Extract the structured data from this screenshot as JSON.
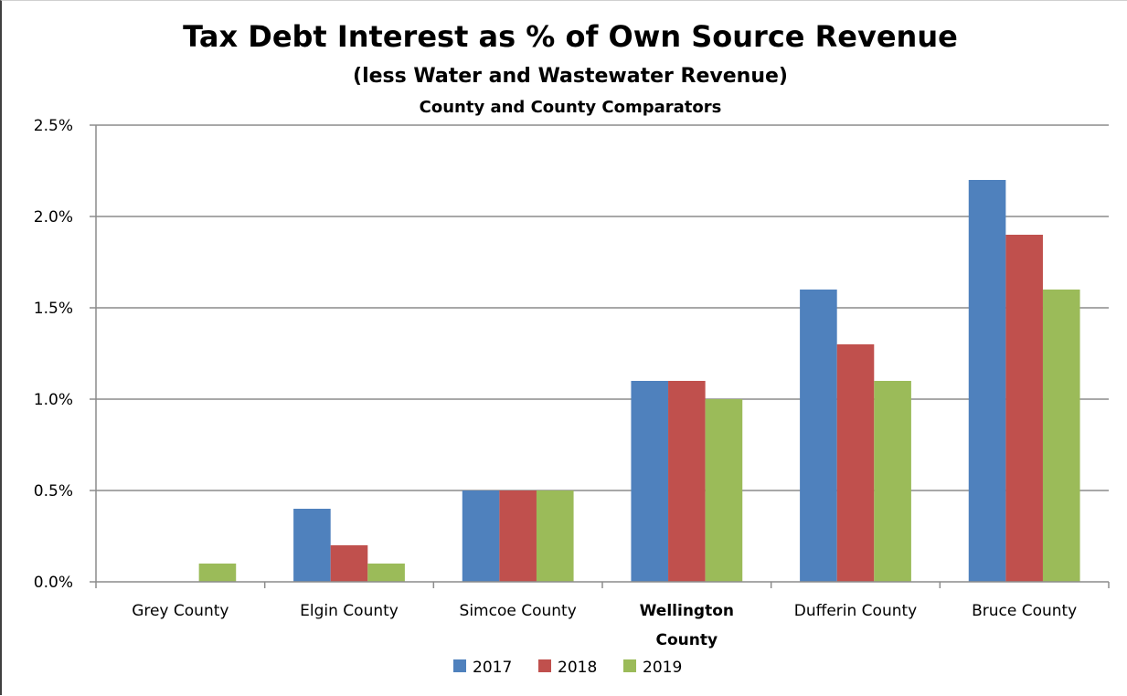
{
  "chart_data": {
    "type": "bar",
    "title": "Tax Debt Interest as % of Own Source Revenue",
    "subtitle": "(less Water and Wastewater Revenue)",
    "subtitle2": "County and County Comparators",
    "xlabel": "",
    "ylabel": "",
    "ylim": [
      0,
      2.5
    ],
    "yticks": [
      "0.0%",
      "0.5%",
      "1.0%",
      "1.5%",
      "2.0%",
      "2.5%"
    ],
    "ytick_values": [
      0,
      0.5,
      1.0,
      1.5,
      2.0,
      2.5
    ],
    "categories": [
      {
        "label": [
          "Grey County"
        ],
        "bold": false
      },
      {
        "label": [
          "Elgin County"
        ],
        "bold": false
      },
      {
        "label": [
          "Simcoe County"
        ],
        "bold": false
      },
      {
        "label": [
          "Wellington",
          "County"
        ],
        "bold": true
      },
      {
        "label": [
          "Dufferin County"
        ],
        "bold": false
      },
      {
        "label": [
          "Bruce County"
        ],
        "bold": false
      }
    ],
    "series": [
      {
        "name": "2017",
        "color": "#4f81bd",
        "values": [
          0,
          0.4,
          0.5,
          1.1,
          1.6,
          2.2
        ]
      },
      {
        "name": "2018",
        "color": "#c0504d",
        "values": [
          0,
          0.2,
          0.5,
          1.1,
          1.3,
          1.9
        ]
      },
      {
        "name": "2019",
        "color": "#9bbb59",
        "values": [
          0.1,
          0.1,
          0.5,
          1.0,
          1.1,
          1.6
        ]
      }
    ],
    "grid": true,
    "legend_position": "bottom"
  }
}
